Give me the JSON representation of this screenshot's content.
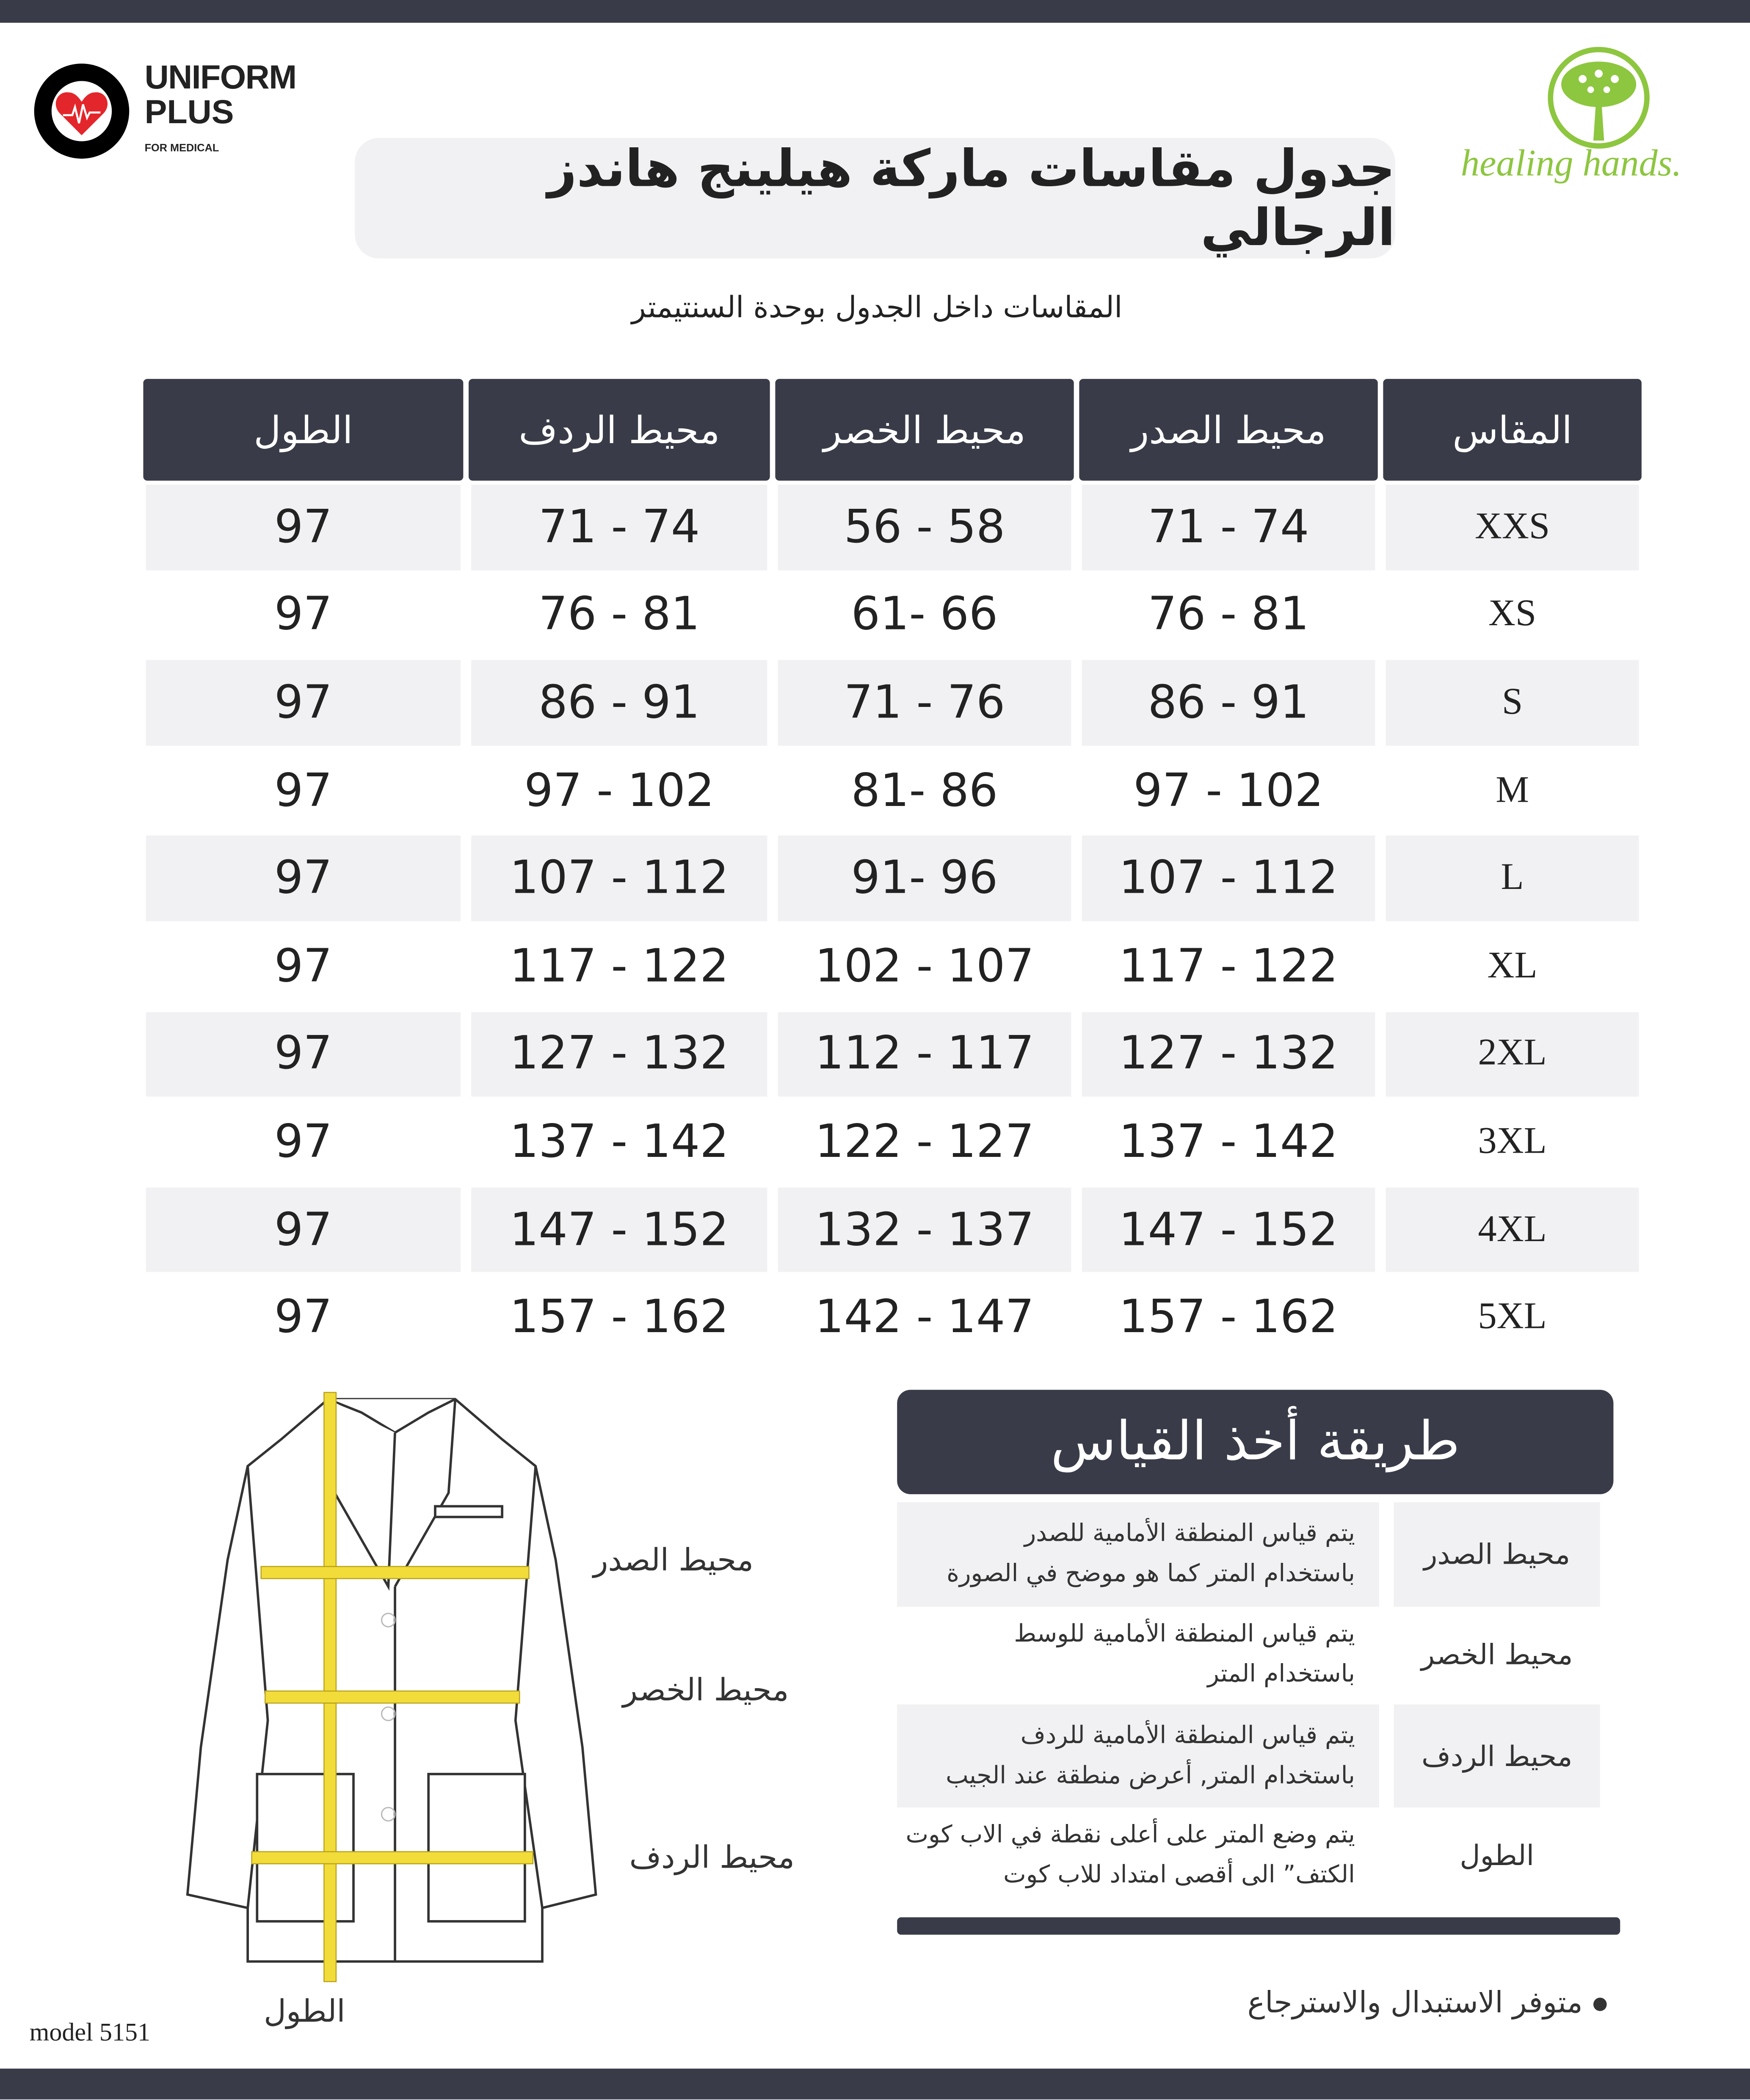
{
  "brand_left": {
    "name_line1": "UNIFORM",
    "name_line2": "PLUS",
    "tagline": "FOR MEDICAL",
    "heart_color": "#e3262b"
  },
  "brand_right": {
    "name": "healing hands.",
    "color": "#8dc63f"
  },
  "title": "جدول مقاسات ماركة هيلينج هاندز الرجالي",
  "subtitle": "المقاسات داخل الجدول بوحدة السنتيمتر",
  "table": {
    "headers": [
      "المقاس",
      "محيط الصدر",
      "محيط الخصر",
      "محيط الردف",
      "الطول"
    ],
    "rows": [
      [
        "XXS",
        "71 - 74",
        "56 - 58",
        "71 - 74",
        "97"
      ],
      [
        "XS",
        "76 - 81",
        "61- 66",
        "76 - 81",
        "97"
      ],
      [
        "S",
        "86 - 91",
        "71 - 76",
        "86 - 91",
        "97"
      ],
      [
        "M",
        "97 - 102",
        "81- 86",
        "97 - 102",
        "97"
      ],
      [
        "L",
        "107 - 112",
        "91- 96",
        "107 - 112",
        "97"
      ],
      [
        "XL",
        "117 - 122",
        "102 - 107",
        "117 - 122",
        "97"
      ],
      [
        "2XL",
        "127 - 132",
        "112 - 117",
        "127 - 132",
        "97"
      ],
      [
        "3XL",
        "137 - 142",
        "122 - 127",
        "137 - 142",
        "97"
      ],
      [
        "4XL",
        "147 - 152",
        "132 - 137",
        "147 - 152",
        "97"
      ],
      [
        "5XL",
        "157 - 162",
        "142 - 147",
        "157 - 162",
        "97"
      ]
    ]
  },
  "jacket": {
    "labels": {
      "chest": "محيط الصدر",
      "waist": "محيط الخصر",
      "hip": "محيط الردف",
      "length": "الطول"
    },
    "model": "model 5151",
    "tape_color": "#f2dc3a"
  },
  "how_to": {
    "title": "طريقة أخذ القياس",
    "items": [
      {
        "label": "محيط الصدر",
        "lines": [
          "يتم قياس المنطقة الأمامية للصدر",
          "باستخدام المتر كما هو موضح في الصورة"
        ]
      },
      {
        "label": "محيط الخصر",
        "lines": [
          "يتم قياس المنطقة الأمامية للوسط",
          "باستخدام المتر"
        ]
      },
      {
        "label": "محيط الردف",
        "lines": [
          "يتم قياس المنطقة الأمامية للردف",
          "باستخدام المتر, أعرض منطقة عند الجيب"
        ]
      },
      {
        "label": "الطول",
        "lines": [
          "يتم وضع المتر على أعلى نقطة في الاب كوت",
          "الكتف”  الى أقصى امتداد للاب كوت"
        ]
      }
    ]
  },
  "note": "متوفر الاستبدال والاسترجاع"
}
